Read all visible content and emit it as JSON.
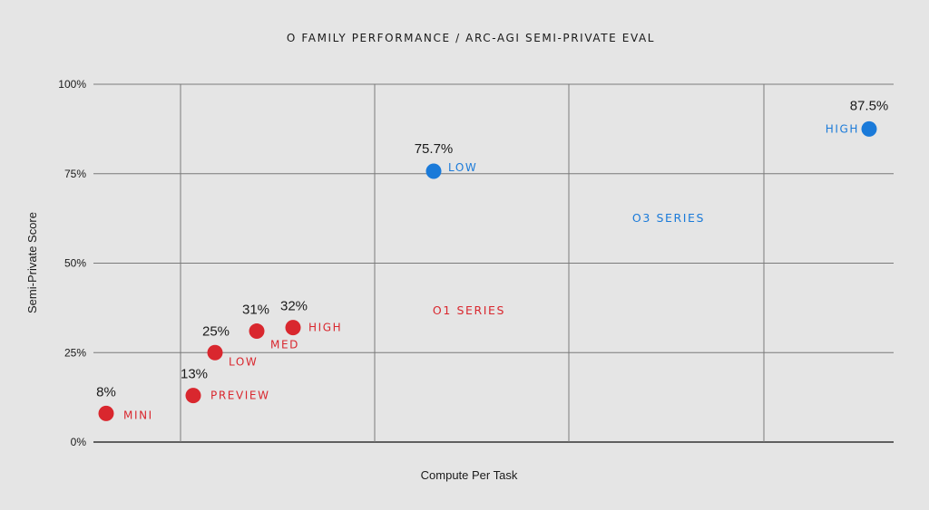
{
  "chart_data": {
    "type": "scatter",
    "title": "O FAMILY PERFORMANCE / ARC-AGI SEMI-PRIVATE EVAL",
    "xlabel": "Compute Per Task",
    "ylabel": "Semi-Private Score",
    "ylim": [
      0,
      100
    ],
    "y_ticks": [
      "0%",
      "25%",
      "50%",
      "75%",
      "100%"
    ],
    "grid": true,
    "series": [
      {
        "name": "O1 SERIES",
        "color": "#d9272e",
        "points": [
          {
            "label": "MINI",
            "value_label": "8%",
            "y": 8
          },
          {
            "label": "PREVIEW",
            "value_label": "13%",
            "y": 13
          },
          {
            "label": "LOW",
            "value_label": "25%",
            "y": 25
          },
          {
            "label": "MED",
            "value_label": "31%",
            "y": 31
          },
          {
            "label": "HIGH",
            "value_label": "32%",
            "y": 32
          }
        ]
      },
      {
        "name": "O3 SERIES",
        "color": "#1a7ad9",
        "points": [
          {
            "label": "LOW",
            "value_label": "75.7%",
            "y": 75.7
          },
          {
            "label": "HIGH",
            "value_label": "87.5%",
            "y": 87.5
          }
        ]
      }
    ]
  }
}
